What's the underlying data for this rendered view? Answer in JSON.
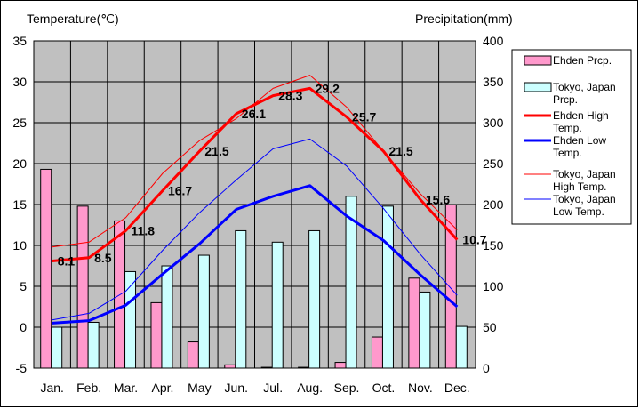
{
  "chart_data": {
    "type": "bar+line",
    "categories": [
      "Jan.",
      "Feb.",
      "Mar.",
      "Apr.",
      "May",
      "Jun.",
      "Jul.",
      "Aug.",
      "Sep.",
      "Oct.",
      "Nov.",
      "Dec."
    ],
    "y_left": {
      "label": "Temperature(℃)",
      "range": [
        -5,
        35
      ],
      "ticks": [
        -5,
        0,
        5,
        10,
        15,
        20,
        25,
        30,
        35
      ]
    },
    "y_right": {
      "label": "Precipitation(mm)",
      "range": [
        0,
        400
      ],
      "ticks": [
        0,
        50,
        100,
        150,
        200,
        250,
        300,
        350,
        400
      ]
    },
    "grid": true,
    "legend_position": "right",
    "bar_series": [
      {
        "name": "Ehden Prcp.",
        "color": "#ff99cc",
        "axis": "right",
        "values": [
          243,
          198,
          180,
          80,
          32,
          4,
          1,
          1,
          7,
          38,
          110,
          200
        ]
      },
      {
        "name": "Tokyo, Japan Prcp.",
        "color": "#ccffff",
        "axis": "right",
        "values": [
          50,
          56,
          118,
          125,
          138,
          168,
          154,
          168,
          210,
          198,
          93,
          51
        ]
      }
    ],
    "line_series": [
      {
        "name": "Ehden High Temp.",
        "color": "#ff0000",
        "width": 3,
        "axis": "left",
        "values": [
          8.1,
          8.5,
          11.8,
          16.7,
          21.5,
          26.1,
          28.3,
          29.2,
          25.7,
          21.5,
          15.6,
          10.7
        ],
        "show_labels": true
      },
      {
        "name": "Ehden Low Temp.",
        "color": "#0000ff",
        "width": 3,
        "axis": "left",
        "values": [
          0.5,
          0.8,
          2.7,
          6.5,
          10.2,
          14.4,
          16.0,
          17.3,
          13.6,
          10.6,
          6.4,
          2.5
        ],
        "show_labels": false
      },
      {
        "name": "Tokyo, Japan High Temp.",
        "color": "#ff0000",
        "width": 1,
        "axis": "left",
        "values": [
          9.8,
          10.4,
          13.4,
          18.8,
          22.8,
          25.5,
          29.2,
          30.8,
          26.9,
          21.5,
          16.3,
          11.9
        ],
        "show_labels": false
      },
      {
        "name": "Tokyo, Japan Low Temp.",
        "color": "#0000ff",
        "width": 1,
        "axis": "left",
        "values": [
          0.9,
          1.7,
          4.4,
          9.4,
          14.0,
          18.0,
          21.8,
          23.0,
          19.7,
          14.5,
          8.9,
          3.9
        ],
        "show_labels": false
      }
    ],
    "high_temp_labels": [
      "8.1",
      "8.5",
      "11.8",
      "16.7",
      "21.5",
      "26.1",
      "28.3",
      "29.2",
      "25.7",
      "21.5",
      "15.6",
      "10.7"
    ]
  }
}
